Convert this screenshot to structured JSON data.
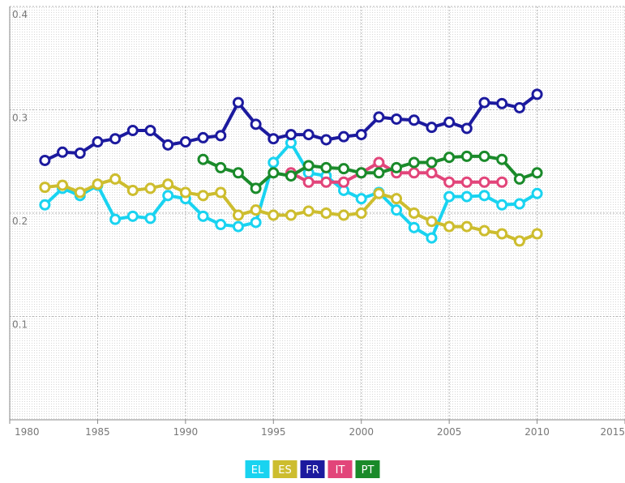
{
  "chart_data": {
    "type": "line",
    "x": [
      1982,
      1983,
      1984,
      1985,
      1986,
      1987,
      1988,
      1989,
      1990,
      1991,
      1992,
      1993,
      1994,
      1995,
      1996,
      1997,
      1998,
      1999,
      2000,
      2001,
      2002,
      2003,
      2004,
      2005,
      2006,
      2007,
      2008,
      2009,
      2010
    ],
    "series": [
      {
        "name": "EL",
        "color": "#19d3f0",
        "values": [
          0.208,
          0.224,
          0.217,
          0.227,
          0.194,
          0.197,
          0.195,
          0.217,
          0.214,
          0.197,
          0.189,
          0.187,
          0.191,
          0.249,
          0.268,
          0.239,
          0.236,
          0.222,
          0.214,
          0.22,
          0.203,
          0.186,
          0.176,
          0.216,
          0.216,
          0.217,
          0.208,
          0.209,
          0.219
        ]
      },
      {
        "name": "ES",
        "color": "#cdbd2e",
        "values": [
          0.225,
          0.227,
          0.22,
          0.228,
          0.233,
          0.222,
          0.224,
          0.228,
          0.22,
          0.217,
          0.22,
          0.198,
          0.203,
          0.198,
          0.198,
          0.202,
          0.2,
          0.198,
          0.2,
          0.219,
          0.214,
          0.2,
          0.192,
          0.187,
          0.187,
          0.183,
          0.18,
          0.173,
          0.18
        ]
      },
      {
        "name": "FR",
        "color": "#1c1a9e",
        "values": [
          0.251,
          0.259,
          0.258,
          0.269,
          0.272,
          0.28,
          0.28,
          0.266,
          0.269,
          0.273,
          0.275,
          0.307,
          0.286,
          0.272,
          0.276,
          0.276,
          0.271,
          0.274,
          0.276,
          0.293,
          0.291,
          0.29,
          0.283,
          0.288,
          0.282,
          0.307,
          0.306,
          0.302,
          0.315
        ]
      },
      {
        "name": "IT",
        "color": "#e2457a",
        "values": [
          null,
          null,
          null,
          null,
          null,
          null,
          null,
          null,
          null,
          null,
          null,
          null,
          null,
          null,
          0.239,
          0.23,
          0.23,
          0.23,
          0.239,
          0.249,
          0.239,
          0.239,
          0.239,
          0.23,
          0.23,
          0.23,
          0.23,
          null,
          null
        ]
      },
      {
        "name": "PT",
        "color": "#1a8a2a",
        "values": [
          null,
          null,
          null,
          null,
          null,
          null,
          null,
          null,
          null,
          0.252,
          0.244,
          0.239,
          0.224,
          0.239,
          0.236,
          0.246,
          0.244,
          0.243,
          0.239,
          0.239,
          0.244,
          0.249,
          0.249,
          0.254,
          0.255,
          0.255,
          0.252,
          0.233,
          0.239
        ]
      }
    ],
    "xlim": [
      1980,
      2015
    ],
    "xticks": [
      1980,
      1985,
      1990,
      1995,
      2000,
      2005,
      2010,
      2015
    ],
    "ylim": [
      0,
      0.4
    ],
    "yticks": [
      0.1,
      0.2,
      0.3,
      0.4
    ],
    "grid": true,
    "legend": "bottom"
  }
}
